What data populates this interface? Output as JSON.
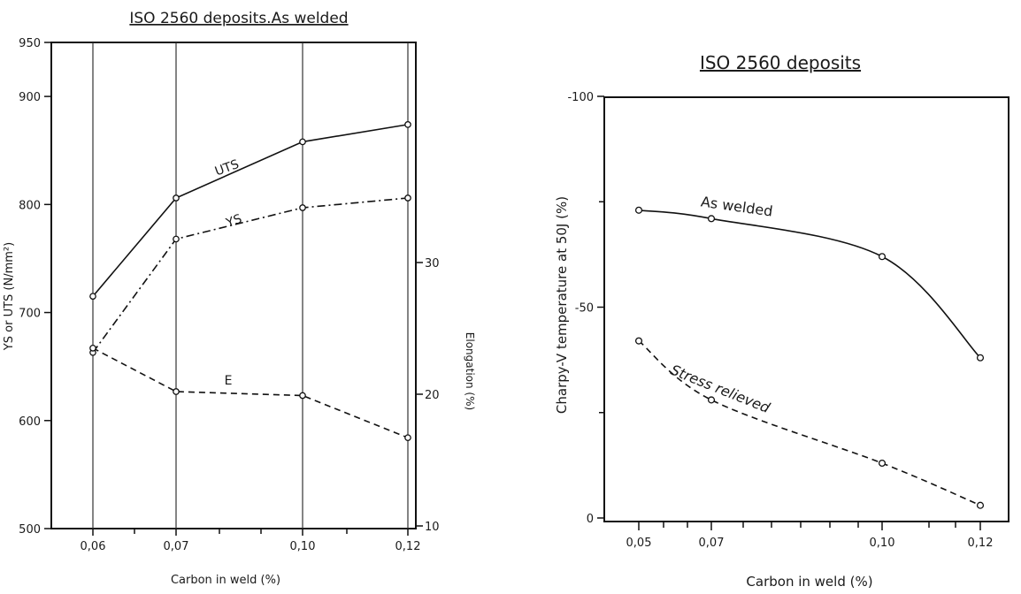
{
  "chart_data": [
    {
      "type": "line",
      "title": "ISO 2560 deposits.As welded",
      "xlabel": "Carbon in weld (%)",
      "ylabel": "YS or UTS (N/mm²)",
      "ylabel_right": "Elongation (%)",
      "x_tick_labels": [
        "0,06",
        "0,07",
        "0,10",
        "0,12"
      ],
      "x_values": [
        0.06,
        0.07,
        0.1,
        0.12
      ],
      "ylim": [
        500,
        950
      ],
      "y_ticks": [
        500,
        600,
        700,
        800,
        900,
        950
      ],
      "y2lim": [
        10,
        25
      ],
      "y2_ticks": [
        10,
        20,
        30
      ],
      "grid": "vertical",
      "series": [
        {
          "name": "UTS",
          "axis": "left",
          "style": "solid",
          "values": [
            715,
            806,
            858,
            874
          ]
        },
        {
          "name": "YS",
          "axis": "left",
          "style": "dashdot",
          "values": [
            663,
            768,
            797,
            806
          ]
        },
        {
          "name": "E",
          "axis": "right",
          "style": "dashed",
          "values": [
            23.5,
            20.2,
            19.9,
            16.7
          ]
        }
      ]
    },
    {
      "type": "line",
      "title": "ISO 2560 deposits",
      "xlabel": "Carbon in weld (%)",
      "ylabel": "Charpy-V temperature at 50J (%)",
      "x_tick_labels": [
        "0,05",
        "0,07",
        "0,10",
        "0,12"
      ],
      "x_values": [
        0.05,
        0.07,
        0.1,
        0.12
      ],
      "ylim": [
        0,
        -100
      ],
      "y_ticks": [
        0,
        -50,
        -100
      ],
      "y_tick_labels": [
        "0",
        "-50",
        "-100"
      ],
      "grid": false,
      "series": [
        {
          "name": "As welded",
          "style": "solid",
          "values": [
            -73,
            -71,
            -62,
            -38
          ]
        },
        {
          "name": "Stress relieved",
          "style": "dashed",
          "values": [
            -42,
            -28,
            -13,
            -3
          ]
        }
      ]
    }
  ]
}
